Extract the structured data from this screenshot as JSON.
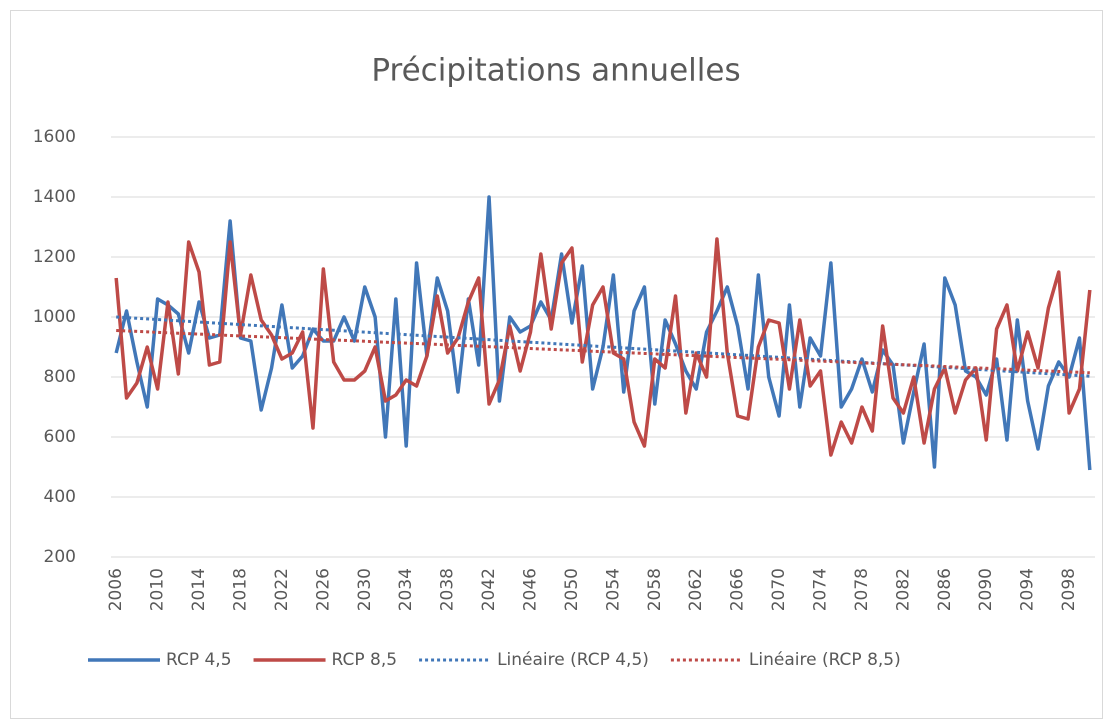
{
  "chart_data": {
    "type": "line",
    "title": "Précipitations annuelles",
    "categories": [
      "2006",
      null,
      null,
      null,
      "2010",
      null,
      null,
      null,
      "2014",
      null,
      null,
      null,
      "2018",
      null,
      null,
      null,
      "2022",
      null,
      null,
      null,
      "2026",
      null,
      null,
      null,
      "2030",
      null,
      null,
      null,
      "2034",
      null,
      null,
      null,
      "2038",
      null,
      null,
      null,
      "2042",
      null,
      null,
      null,
      "2046",
      null,
      null,
      null,
      "2050",
      null,
      null,
      null,
      "2054",
      null,
      null,
      null,
      "2058",
      null,
      null,
      null,
      "2062",
      null,
      null,
      null,
      "2066",
      null,
      null,
      null,
      "2070",
      null,
      null,
      null,
      "2074",
      null,
      null,
      null,
      "2078",
      null,
      null,
      null,
      "2082",
      null,
      null,
      null,
      "2086",
      null,
      null,
      null,
      "2090",
      null,
      null,
      null,
      "2094",
      null,
      null,
      null,
      "2098",
      null,
      null
    ],
    "series": [
      {
        "name": "RCP 4,5",
        "color": "#4177b8",
        "style": "solid",
        "values": [
          880,
          1020,
          850,
          700,
          1060,
          1040,
          1010,
          880,
          1050,
          930,
          940,
          1320,
          930,
          920,
          690,
          830,
          1040,
          830,
          870,
          960,
          920,
          920,
          1000,
          920,
          1100,
          1000,
          600,
          1060,
          570,
          1180,
          870,
          1130,
          1020,
          750,
          1060,
          840,
          1400,
          720,
          1000,
          950,
          970,
          1050,
          990,
          1210,
          980,
          1170,
          760,
          900,
          1140,
          750,
          1020,
          1100,
          710,
          990,
          910,
          820,
          760,
          950,
          1020,
          1100,
          970,
          760,
          1140,
          800,
          670,
          1040,
          700,
          930,
          870,
          1180,
          700,
          760,
          860,
          750,
          890,
          840,
          580,
          750,
          910,
          500,
          1130,
          1040,
          820,
          800,
          740,
          860,
          590,
          990,
          720,
          560,
          770,
          850,
          800,
          930,
          490
        ]
      },
      {
        "name": "RCP 8,5",
        "color": "#be4a47",
        "style": "solid",
        "values": [
          1130,
          730,
          780,
          900,
          760,
          1050,
          810,
          1250,
          1150,
          840,
          850,
          1250,
          940,
          1140,
          990,
          940,
          860,
          880,
          950,
          630,
          1160,
          850,
          790,
          790,
          820,
          900,
          720,
          740,
          790,
          770,
          870,
          1070,
          880,
          930,
          1050,
          1130,
          710,
          790,
          970,
          820,
          950,
          1210,
          960,
          1180,
          1230,
          850,
          1040,
          1100,
          880,
          860,
          650,
          570,
          860,
          830,
          1070,
          680,
          880,
          800,
          1260,
          880,
          670,
          660,
          900,
          990,
          980,
          760,
          990,
          770,
          820,
          540,
          650,
          580,
          700,
          620,
          970,
          730,
          680,
          800,
          580,
          760,
          830,
          680,
          790,
          830,
          590,
          960,
          1040,
          820,
          950,
          830,
          1030,
          1150,
          680,
          760,
          1090
        ]
      },
      {
        "name": "Linéaire (RCP 4,5)",
        "color": "#4177b8",
        "style": "dotted",
        "values": [
          1000,
          997.9,
          995.8,
          993.7,
          991.6,
          989.5,
          987.4,
          985.3,
          983.2,
          981.1,
          979,
          976.9,
          974.8,
          972.7,
          970.6,
          968.5,
          966.4,
          964.3,
          962.2,
          960.1,
          958,
          955.9,
          953.8,
          951.7,
          949.6,
          947.5,
          945.4,
          943.3,
          941.2,
          939.1,
          937,
          934.9,
          932.8,
          930.7,
          928.6,
          926.5,
          924.4,
          922.3,
          920.2,
          918.1,
          916,
          913.9,
          911.8,
          909.7,
          907.6,
          905.5,
          903.4,
          901.3,
          899.2,
          897.1,
          895,
          892.9,
          890.8,
          888.7,
          886.6,
          884.5,
          882.4,
          880.3,
          878.2,
          876.1,
          874,
          871.9,
          869.8,
          867.7,
          865.6,
          863.5,
          861.4,
          859.3,
          857.2,
          855.1,
          853,
          850.9,
          848.8,
          846.7,
          844.6,
          842.5,
          840.4,
          838.3,
          836.2,
          834.1,
          832,
          829.9,
          827.8,
          825.7,
          823.6,
          821.5,
          819.4,
          817.3,
          815.2,
          813.1,
          811,
          808.9,
          806.8,
          804.7,
          802.6
        ]
      },
      {
        "name": "Linéaire (RCP 8,5)",
        "color": "#be4a47",
        "style": "dotted",
        "values": [
          955,
          953.5,
          952,
          950.5,
          949,
          947.5,
          946,
          944.5,
          943,
          941.5,
          940,
          938.5,
          937,
          935.5,
          934,
          932.5,
          931,
          929.5,
          928,
          926.5,
          925,
          923.5,
          922,
          920.5,
          919,
          917.5,
          916,
          914.5,
          913,
          911.5,
          910,
          908.5,
          907,
          905.5,
          904,
          902.5,
          901,
          899.5,
          898,
          896.5,
          895,
          893.5,
          892,
          890.5,
          889,
          887.5,
          886,
          884.5,
          883,
          881.5,
          880,
          878.5,
          877,
          875.5,
          874,
          872.5,
          871,
          869.5,
          868,
          866.5,
          865,
          863.5,
          862,
          860.5,
          859,
          857.5,
          856,
          854.5,
          853,
          851.5,
          850,
          848.5,
          847,
          845.5,
          844,
          842.5,
          841,
          839.5,
          838,
          836.5,
          835,
          833.5,
          832,
          830.5,
          829,
          827.5,
          826,
          824.5,
          823,
          821.5,
          820,
          818.5,
          817,
          815.5,
          814
        ]
      }
    ],
    "ylim": [
      200,
      1600
    ],
    "yticks": [
      200,
      400,
      600,
      800,
      1000,
      1200,
      1400,
      1600
    ],
    "grid": true,
    "legend": "bottom"
  }
}
